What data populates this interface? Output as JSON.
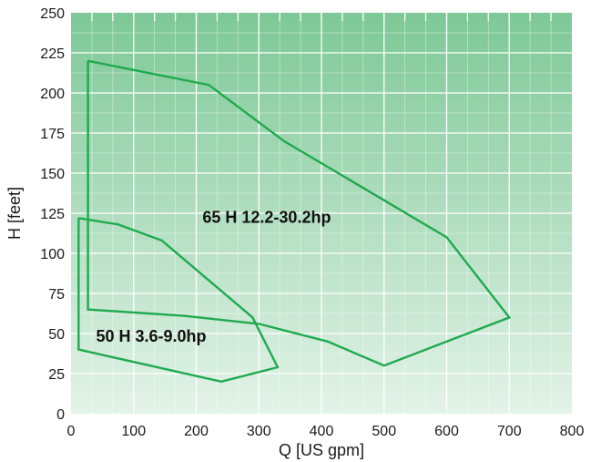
{
  "chart_data": {
    "type": "line",
    "title": "",
    "xlabel": "Q [US gpm]",
    "ylabel": "H [feet]",
    "xlim": [
      0,
      800
    ],
    "ylim": [
      0,
      250
    ],
    "xticks": [
      0,
      100,
      200,
      300,
      400,
      500,
      600,
      700,
      800
    ],
    "yticks": [
      0,
      25,
      50,
      75,
      100,
      125,
      150,
      175,
      200,
      225,
      250
    ],
    "x_minor_step": 33.33,
    "y_minor_step": 12.5,
    "grid": true,
    "line_color": "#1faa4f",
    "background_gradient": [
      "#7dc896",
      "#e3f3e8"
    ],
    "series": [
      {
        "name": "65 H 12.2-30.2hp",
        "points": [
          [
            27,
            220
          ],
          [
            220,
            205
          ],
          [
            340,
            170
          ],
          [
            600,
            110
          ],
          [
            700,
            60
          ],
          [
            500,
            30
          ],
          [
            410,
            45
          ],
          [
            300,
            56
          ],
          [
            180,
            61
          ],
          [
            27,
            65
          ],
          [
            27,
            220
          ]
        ]
      },
      {
        "name": "50 H 3.6-9.0hp",
        "points": [
          [
            12,
            122
          ],
          [
            75,
            118
          ],
          [
            145,
            108
          ],
          [
            290,
            60
          ],
          [
            330,
            29
          ],
          [
            240,
            20
          ],
          [
            12,
            40
          ],
          [
            12,
            122
          ]
        ]
      }
    ],
    "annotations": [
      {
        "text": "65 H 12.2-30.2hp",
        "x": 210,
        "y": 119
      },
      {
        "text": "50 H 3.6-9.0hp",
        "x": 40,
        "y": 45
      }
    ]
  }
}
